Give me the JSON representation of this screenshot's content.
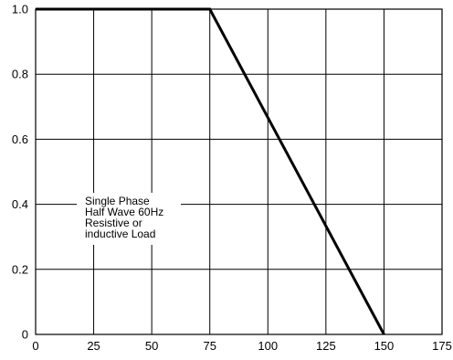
{
  "chart_data": {
    "type": "line",
    "title": "",
    "xlabel": "",
    "ylabel": "",
    "xlim": [
      0,
      175
    ],
    "ylim": [
      0,
      1.0
    ],
    "grid": true,
    "x_ticks": [
      0,
      25,
      50,
      75,
      100,
      125,
      150,
      175
    ],
    "x_tick_labels": [
      "0",
      "25",
      "50",
      "75",
      "100",
      "125",
      "150",
      "175"
    ],
    "y_ticks": [
      0,
      0.2,
      0.4,
      0.6,
      0.8,
      1.0
    ],
    "y_tick_labels": [
      "0",
      "0.2",
      "0.4",
      "0.6",
      "0.8",
      "1.0"
    ],
    "series": [
      {
        "x": [
          0,
          75,
          150
        ],
        "y": [
          1.0,
          1.0,
          0.0
        ],
        "color": "#000000"
      }
    ],
    "annotations": [
      {
        "text": "Single Phase",
        "x": 0,
        "y": 0.44
      },
      {
        "text": "Half Wave 60Hz",
        "x": 0,
        "y": 0.41
      },
      {
        "text": "Resistive or",
        "x": 0,
        "y": 0.38
      },
      {
        "text": "inductive Load",
        "x": 0,
        "y": 0.35
      }
    ]
  }
}
